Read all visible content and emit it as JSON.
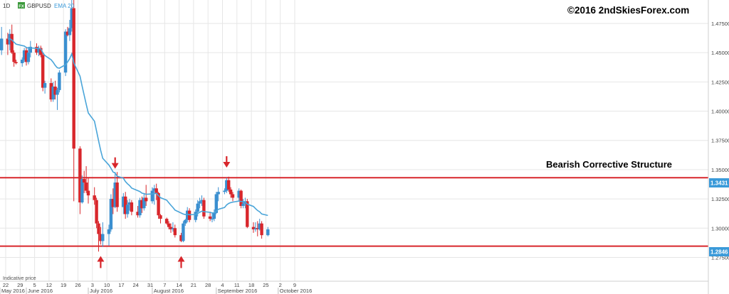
{
  "header": {
    "timeframe": "1D",
    "symbol_badge": "FX",
    "symbol": "GBPUSD",
    "indicator": "EMA 20"
  },
  "copyright": "©2016 2ndSkiesForex.com",
  "annotation": "Bearish Corrective Structure",
  "indicative_price": "Indicative price",
  "price_tags": {
    "upper": "1.3431",
    "lower": "1.2846"
  },
  "colors": {
    "bull": "#3a8fd0",
    "bear": "#d8262b",
    "ema": "#4aa5d9",
    "level": "#d8262b",
    "arrow": "#d8262b",
    "tag_bg": "#3a9ad9",
    "grid": "#e6e6e6"
  },
  "chart_data": {
    "type": "candlestick",
    "y_ticks": [
      "1.47500",
      "1.45000",
      "1.42500",
      "1.40000",
      "1.37500",
      "1.35000",
      "1.32500",
      "1.30000",
      "1.27500"
    ],
    "ylim": [
      1.268,
      1.495
    ],
    "x_ticks": [
      "22",
      "29",
      "5",
      "12",
      "19",
      "26",
      "3",
      "10",
      "17",
      "24",
      "31",
      "7",
      "14",
      "21",
      "28",
      "4",
      "11",
      "18",
      "25",
      "2",
      "9"
    ],
    "months": [
      "May 2016",
      "June 2016",
      "July 2016",
      "August 2016",
      "September 2016",
      "October 2016"
    ],
    "horizontal_levels": [
      1.3431,
      1.2846
    ],
    "arrows": [
      {
        "dir": "down",
        "day": 8,
        "price": 1.352
      },
      {
        "dir": "up",
        "day": 3,
        "price": 1.275
      },
      {
        "dir": "up",
        "day": 7,
        "price": 1.275
      },
      {
        "dir": "down",
        "day": 1,
        "price": 1.353
      }
    ],
    "candles": [
      {
        "d": "2016-05-20",
        "o": 1.452,
        "h": 1.472,
        "l": 1.448,
        "c": 1.462
      },
      {
        "d": "2016-05-23",
        "o": 1.462,
        "h": 1.467,
        "l": 1.448,
        "c": 1.457
      },
      {
        "d": "2016-05-24",
        "o": 1.457,
        "h": 1.47,
        "l": 1.452,
        "c": 1.466
      },
      {
        "d": "2016-05-25",
        "o": 1.466,
        "h": 1.474,
        "l": 1.449,
        "c": 1.45
      },
      {
        "d": "2016-05-26",
        "o": 1.45,
        "h": 1.452,
        "l": 1.438,
        "c": 1.442
      },
      {
        "d": "2016-05-27",
        "o": 1.442,
        "h": 1.444,
        "l": 1.44,
        "c": 1.441
      },
      {
        "d": "2016-05-30",
        "o": 1.441,
        "h": 1.446,
        "l": 1.438,
        "c": 1.444
      },
      {
        "d": "2016-05-31",
        "o": 1.444,
        "h": 1.454,
        "l": 1.442,
        "c": 1.452
      },
      {
        "d": "2016-06-01",
        "o": 1.452,
        "h": 1.455,
        "l": 1.439,
        "c": 1.442
      },
      {
        "d": "2016-06-02",
        "o": 1.442,
        "h": 1.455,
        "l": 1.44,
        "c": 1.45
      },
      {
        "d": "2016-06-03",
        "o": 1.45,
        "h": 1.46,
        "l": 1.446,
        "c": 1.455
      },
      {
        "d": "2016-06-06",
        "o": 1.455,
        "h": 1.458,
        "l": 1.448,
        "c": 1.45
      },
      {
        "d": "2016-06-07",
        "o": 1.45,
        "h": 1.456,
        "l": 1.447,
        "c": 1.454
      },
      {
        "d": "2016-06-08",
        "o": 1.454,
        "h": 1.456,
        "l": 1.446,
        "c": 1.448
      },
      {
        "d": "2016-06-09",
        "o": 1.448,
        "h": 1.45,
        "l": 1.417,
        "c": 1.42
      },
      {
        "d": "2016-06-10",
        "o": 1.42,
        "h": 1.426,
        "l": 1.415,
        "c": 1.424
      },
      {
        "d": "2016-06-13",
        "o": 1.424,
        "h": 1.428,
        "l": 1.408,
        "c": 1.41
      },
      {
        "d": "2016-06-14",
        "o": 1.41,
        "h": 1.425,
        "l": 1.408,
        "c": 1.421
      },
      {
        "d": "2016-06-15",
        "o": 1.421,
        "h": 1.426,
        "l": 1.41,
        "c": 1.414
      },
      {
        "d": "2016-06-16",
        "o": 1.414,
        "h": 1.42,
        "l": 1.401,
        "c": 1.418
      },
      {
        "d": "2016-06-17",
        "o": 1.418,
        "h": 1.435,
        "l": 1.416,
        "c": 1.433
      },
      {
        "d": "2016-06-20",
        "o": 1.433,
        "h": 1.47,
        "l": 1.43,
        "c": 1.468
      },
      {
        "d": "2016-06-21",
        "o": 1.468,
        "h": 1.472,
        "l": 1.464,
        "c": 1.465
      },
      {
        "d": "2016-06-22",
        "o": 1.465,
        "h": 1.478,
        "l": 1.46,
        "c": 1.471
      },
      {
        "d": "2016-06-23",
        "o": 1.471,
        "h": 1.502,
        "l": 1.468,
        "c": 1.488
      },
      {
        "d": "2016-06-24",
        "o": 1.488,
        "h": 1.502,
        "l": 1.323,
        "c": 1.368
      },
      {
        "d": "2016-06-27",
        "o": 1.368,
        "h": 1.37,
        "l": 1.312,
        "c": 1.322
      },
      {
        "d": "2016-06-28",
        "o": 1.322,
        "h": 1.345,
        "l": 1.321,
        "c": 1.342
      },
      {
        "d": "2016-06-29",
        "o": 1.342,
        "h": 1.349,
        "l": 1.33,
        "c": 1.339
      },
      {
        "d": "2016-06-30",
        "o": 1.339,
        "h": 1.353,
        "l": 1.33,
        "c": 1.332
      },
      {
        "d": "2016-07-01",
        "o": 1.332,
        "h": 1.343,
        "l": 1.321,
        "c": 1.328
      },
      {
        "d": "2016-07-04",
        "o": 1.328,
        "h": 1.335,
        "l": 1.32,
        "c": 1.324
      },
      {
        "d": "2016-07-05",
        "o": 1.324,
        "h": 1.326,
        "l": 1.3,
        "c": 1.304
      },
      {
        "d": "2016-07-06",
        "o": 1.304,
        "h": 1.306,
        "l": 1.28,
        "c": 1.295
      },
      {
        "d": "2016-07-07",
        "o": 1.295,
        "h": 1.301,
        "l": 1.286,
        "c": 1.289
      },
      {
        "d": "2016-07-08",
        "o": 1.289,
        "h": 1.305,
        "l": 1.284,
        "c": 1.295
      },
      {
        "d": "2016-07-11",
        "o": 1.295,
        "h": 1.303,
        "l": 1.285,
        "c": 1.299
      },
      {
        "d": "2016-07-12",
        "o": 1.299,
        "h": 1.329,
        "l": 1.297,
        "c": 1.325
      },
      {
        "d": "2016-07-13",
        "o": 1.325,
        "h": 1.334,
        "l": 1.312,
        "c": 1.318
      },
      {
        "d": "2016-07-14",
        "o": 1.318,
        "h": 1.348,
        "l": 1.317,
        "c": 1.339
      },
      {
        "d": "2016-07-15",
        "o": 1.339,
        "h": 1.348,
        "l": 1.314,
        "c": 1.318
      },
      {
        "d": "2016-07-18",
        "o": 1.318,
        "h": 1.33,
        "l": 1.312,
        "c": 1.327
      },
      {
        "d": "2016-07-19",
        "o": 1.327,
        "h": 1.331,
        "l": 1.308,
        "c": 1.312
      },
      {
        "d": "2016-07-20",
        "o": 1.312,
        "h": 1.324,
        "l": 1.309,
        "c": 1.32
      },
      {
        "d": "2016-07-21",
        "o": 1.32,
        "h": 1.325,
        "l": 1.315,
        "c": 1.322
      },
      {
        "d": "2016-07-22",
        "o": 1.322,
        "h": 1.324,
        "l": 1.311,
        "c": 1.314
      },
      {
        "d": "2016-07-25",
        "o": 1.314,
        "h": 1.319,
        "l": 1.309,
        "c": 1.311
      },
      {
        "d": "2016-07-26",
        "o": 1.311,
        "h": 1.326,
        "l": 1.309,
        "c": 1.324
      },
      {
        "d": "2016-07-27",
        "o": 1.324,
        "h": 1.327,
        "l": 1.313,
        "c": 1.317
      },
      {
        "d": "2016-07-28",
        "o": 1.317,
        "h": 1.33,
        "l": 1.315,
        "c": 1.326
      },
      {
        "d": "2016-07-29",
        "o": 1.326,
        "h": 1.337,
        "l": 1.319,
        "c": 1.323
      },
      {
        "d": "2016-08-01",
        "o": 1.323,
        "h": 1.335,
        "l": 1.321,
        "c": 1.332
      },
      {
        "d": "2016-08-02",
        "o": 1.332,
        "h": 1.337,
        "l": 1.32,
        "c": 1.334
      },
      {
        "d": "2016-08-03",
        "o": 1.334,
        "h": 1.338,
        "l": 1.324,
        "c": 1.33
      },
      {
        "d": "2016-08-04",
        "o": 1.33,
        "h": 1.331,
        "l": 1.308,
        "c": 1.311
      },
      {
        "d": "2016-08-05",
        "o": 1.311,
        "h": 1.312,
        "l": 1.304,
        "c": 1.308
      },
      {
        "d": "2016-08-08",
        "o": 1.308,
        "h": 1.309,
        "l": 1.303,
        "c": 1.304
      },
      {
        "d": "2016-08-09",
        "o": 1.304,
        "h": 1.306,
        "l": 1.299,
        "c": 1.301
      },
      {
        "d": "2016-08-10",
        "o": 1.301,
        "h": 1.304,
        "l": 1.296,
        "c": 1.299
      },
      {
        "d": "2016-08-11",
        "o": 1.299,
        "h": 1.305,
        "l": 1.297,
        "c": 1.3
      },
      {
        "d": "2016-08-12",
        "o": 1.3,
        "h": 1.303,
        "l": 1.292,
        "c": 1.294
      },
      {
        "d": "2016-08-15",
        "o": 1.294,
        "h": 1.296,
        "l": 1.288,
        "c": 1.289
      },
      {
        "d": "2016-08-16",
        "o": 1.289,
        "h": 1.306,
        "l": 1.288,
        "c": 1.304
      },
      {
        "d": "2016-08-17",
        "o": 1.304,
        "h": 1.308,
        "l": 1.302,
        "c": 1.307
      },
      {
        "d": "2016-08-18",
        "o": 1.307,
        "h": 1.318,
        "l": 1.305,
        "c": 1.315
      },
      {
        "d": "2016-08-19",
        "o": 1.315,
        "h": 1.317,
        "l": 1.305,
        "c": 1.307
      },
      {
        "d": "2016-08-22",
        "o": 1.307,
        "h": 1.316,
        "l": 1.305,
        "c": 1.314
      },
      {
        "d": "2016-08-23",
        "o": 1.314,
        "h": 1.324,
        "l": 1.31,
        "c": 1.321
      },
      {
        "d": "2016-08-24",
        "o": 1.321,
        "h": 1.326,
        "l": 1.317,
        "c": 1.323
      },
      {
        "d": "2016-08-25",
        "o": 1.323,
        "h": 1.328,
        "l": 1.319,
        "c": 1.324
      },
      {
        "d": "2016-08-26",
        "o": 1.324,
        "h": 1.326,
        "l": 1.308,
        "c": 1.31
      },
      {
        "d": "2016-08-29",
        "o": 1.31,
        "h": 1.314,
        "l": 1.306,
        "c": 1.308
      },
      {
        "d": "2016-08-30",
        "o": 1.308,
        "h": 1.313,
        "l": 1.305,
        "c": 1.308
      },
      {
        "d": "2016-08-31",
        "o": 1.308,
        "h": 1.316,
        "l": 1.306,
        "c": 1.313
      },
      {
        "d": "2016-09-01",
        "o": 1.313,
        "h": 1.331,
        "l": 1.312,
        "c": 1.329
      },
      {
        "d": "2016-09-02",
        "o": 1.329,
        "h": 1.335,
        "l": 1.323,
        "c": 1.331
      },
      {
        "d": "2016-09-05",
        "o": 1.331,
        "h": 1.334,
        "l": 1.329,
        "c": 1.332
      },
      {
        "d": "2016-09-06",
        "o": 1.332,
        "h": 1.343,
        "l": 1.33,
        "c": 1.341
      },
      {
        "d": "2016-09-07",
        "o": 1.341,
        "h": 1.344,
        "l": 1.331,
        "c": 1.333
      },
      {
        "d": "2016-09-08",
        "o": 1.333,
        "h": 1.335,
        "l": 1.326,
        "c": 1.329
      },
      {
        "d": "2016-09-09",
        "o": 1.329,
        "h": 1.331,
        "l": 1.323,
        "c": 1.326
      },
      {
        "d": "2016-09-12",
        "o": 1.326,
        "h": 1.334,
        "l": 1.323,
        "c": 1.332
      },
      {
        "d": "2016-09-13",
        "o": 1.332,
        "h": 1.333,
        "l": 1.317,
        "c": 1.319
      },
      {
        "d": "2016-09-14",
        "o": 1.319,
        "h": 1.325,
        "l": 1.317,
        "c": 1.321
      },
      {
        "d": "2016-09-15",
        "o": 1.321,
        "h": 1.326,
        "l": 1.317,
        "c": 1.323
      },
      {
        "d": "2016-09-16",
        "o": 1.323,
        "h": 1.325,
        "l": 1.3,
        "c": 1.301
      },
      {
        "d": "2016-09-19",
        "o": 1.301,
        "h": 1.305,
        "l": 1.296,
        "c": 1.299
      },
      {
        "d": "2016-09-20",
        "o": 1.299,
        "h": 1.305,
        "l": 1.297,
        "c": 1.3
      },
      {
        "d": "2016-09-21",
        "o": 1.3,
        "h": 1.306,
        "l": 1.293,
        "c": 1.299
      },
      {
        "d": "2016-09-22",
        "o": 1.299,
        "h": 1.308,
        "l": 1.298,
        "c": 1.304
      },
      {
        "d": "2016-09-23",
        "o": 1.304,
        "h": 1.306,
        "l": 1.291,
        "c": 1.294
      },
      {
        "d": "2016-09-26",
        "o": 1.294,
        "h": 1.301,
        "l": 1.293,
        "c": 1.299
      }
    ]
  }
}
